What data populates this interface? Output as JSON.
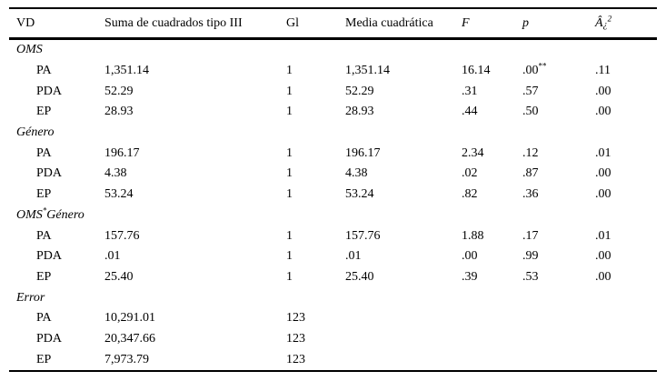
{
  "table": {
    "column_names": [
      "vd",
      "suma-cuadrados-tipo-iii",
      "gl",
      "media-cuadratica",
      "f",
      "p",
      "eta-squared"
    ],
    "columns": [
      "VD",
      "Suma de cuadrados tipo III",
      "Gl",
      "Media cuadrática",
      [
        {
          "t": "F",
          "it": true
        }
      ],
      [
        {
          "t": "p",
          "it": true
        }
      ],
      [
        {
          "t": "Â",
          "it": true
        },
        {
          "t": "¿",
          "it": true,
          "small": true
        },
        {
          "t": "2",
          "it": true,
          "sup": true
        }
      ]
    ],
    "rows": [
      {
        "type": "section",
        "label": "OMS"
      },
      {
        "type": "data",
        "cells": [
          "PA",
          "1,351.14",
          "1",
          "1,351.14",
          "16.14",
          [
            {
              "t": ".00"
            },
            {
              "t": "**",
              "sup": true
            }
          ],
          ".11"
        ]
      },
      {
        "type": "data",
        "cells": [
          "PDA",
          "52.29",
          "1",
          "52.29",
          ".31",
          ".57",
          ".00"
        ]
      },
      {
        "type": "data",
        "cells": [
          "EP",
          "28.93",
          "1",
          "28.93",
          ".44",
          ".50",
          ".00"
        ]
      },
      {
        "type": "section",
        "label": "Género"
      },
      {
        "type": "data",
        "cells": [
          "PA",
          "196.17",
          "1",
          "196.17",
          "2.34",
          ".12",
          ".01"
        ]
      },
      {
        "type": "data",
        "cells": [
          "PDA",
          "4.38",
          "1",
          "4.38",
          ".02",
          ".87",
          ".00"
        ]
      },
      {
        "type": "data",
        "cells": [
          "EP",
          "53.24",
          "1",
          "53.24",
          ".82",
          ".36",
          ".00"
        ]
      },
      {
        "type": "section",
        "label": [
          {
            "t": "OMS"
          },
          {
            "t": "*",
            "sup": true
          },
          {
            "t": "Género"
          }
        ]
      },
      {
        "type": "data",
        "cells": [
          "PA",
          "157.76",
          "1",
          "157.76",
          "1.88",
          ".17",
          ".01"
        ]
      },
      {
        "type": "data",
        "cells": [
          "PDA",
          ".01",
          "1",
          ".01",
          ".00",
          ".99",
          ".00"
        ]
      },
      {
        "type": "data",
        "cells": [
          "EP",
          "25.40",
          "1",
          "25.40",
          ".39",
          ".53",
          ".00"
        ]
      },
      {
        "type": "section",
        "label": "Error"
      },
      {
        "type": "data",
        "cells": [
          "PA",
          "10,291.01",
          "123",
          "",
          "",
          "",
          ""
        ]
      },
      {
        "type": "data",
        "cells": [
          "PDA",
          "20,347.66",
          "123",
          "",
          "",
          "",
          ""
        ]
      },
      {
        "type": "data",
        "cells": [
          "EP",
          "7,973.79",
          "123",
          "",
          "",
          "",
          ""
        ]
      }
    ]
  }
}
